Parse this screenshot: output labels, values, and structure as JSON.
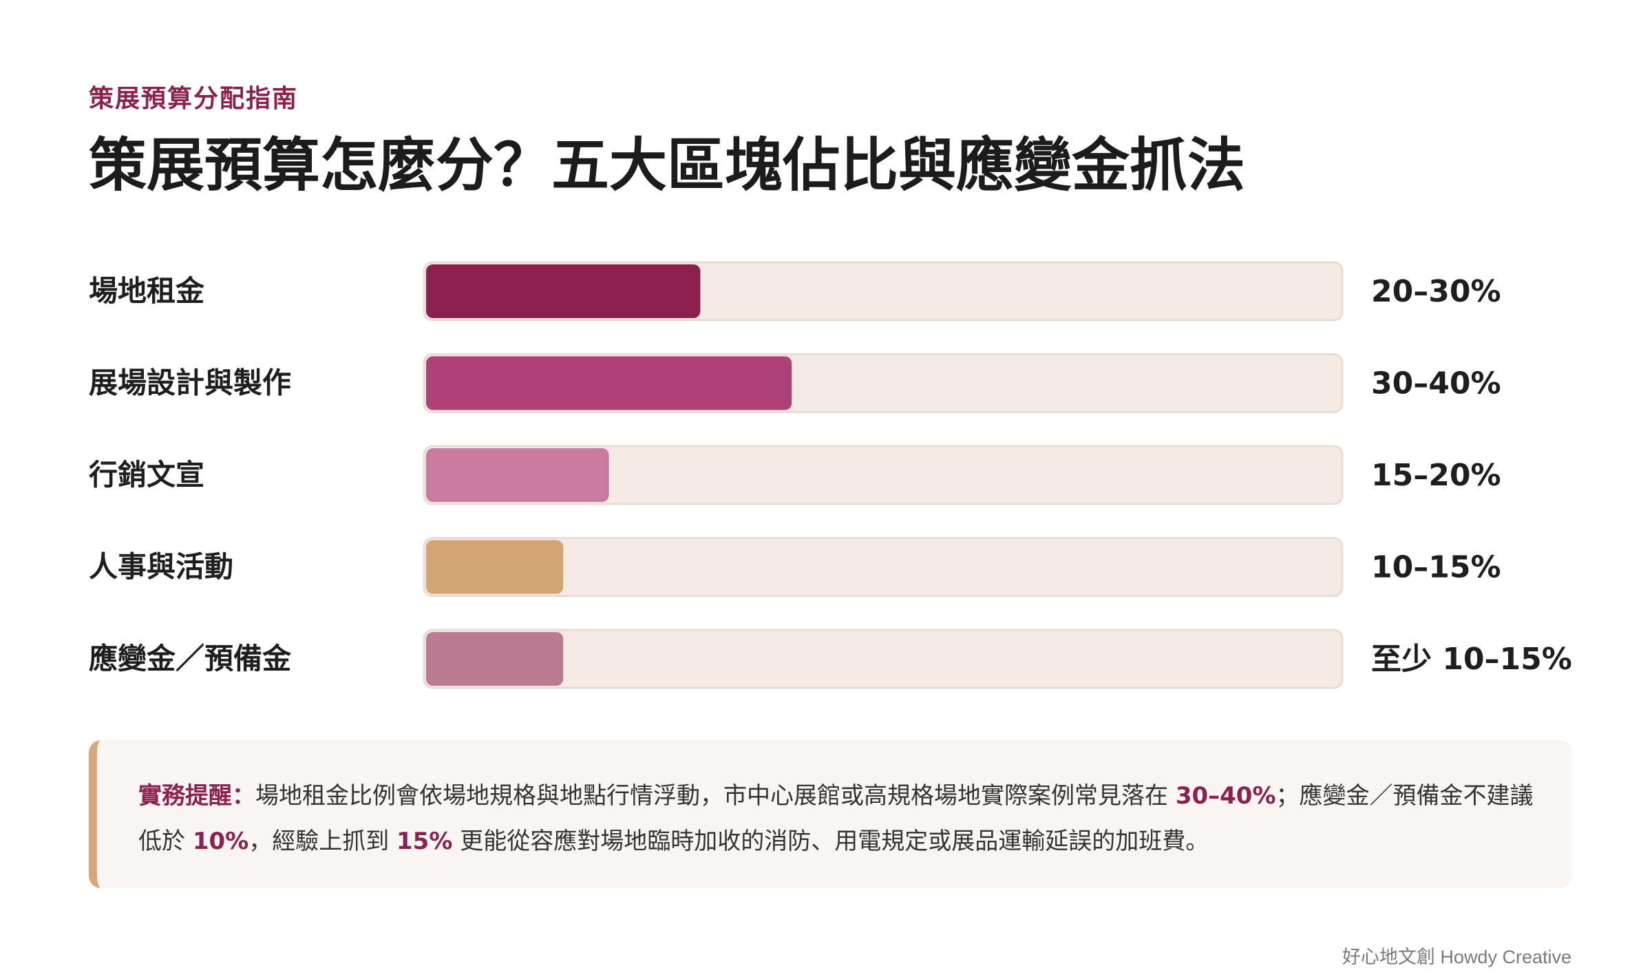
{
  "eyebrow": "策展預算分配指南",
  "title": "策展預算怎麼分？五大區塊佔比與應變金抓法",
  "chart_data": {
    "type": "bar",
    "orientation": "horizontal",
    "categories": [
      "場地租金",
      "展場設計與製作",
      "行銷文宣",
      "人事與活動",
      "應變金／預備金"
    ],
    "values": [
      30,
      40,
      20,
      15,
      15
    ],
    "value_labels": [
      "20–30%",
      "30–40%",
      "15–20%",
      "10–15%",
      "至少 10–15%"
    ],
    "colors": [
      "#8c2150",
      "#ad4277",
      "#c97aa0",
      "#d3a575",
      "#bb7b92"
    ],
    "xlim": [
      0,
      100
    ],
    "track_color": "#f5ebe4",
    "grid": false,
    "legend": "none"
  },
  "note": {
    "lead": "實務提醒：",
    "text1": "場地租金比例會依場地規格與地點行情浮動，市中心展館或高規格場地實際案例常見落在 ",
    "hl1": "30–40%",
    "text2": "；應變金／預備金不建議低於 ",
    "hl2": "10%",
    "text3": "，經驗上抓到 ",
    "hl3": "15%",
    "text4": " 更能從容應對場地臨時加收的消防、用電規定或展品運輸延誤的加班費。"
  },
  "footer": "好心地文創 Howdy Creative"
}
